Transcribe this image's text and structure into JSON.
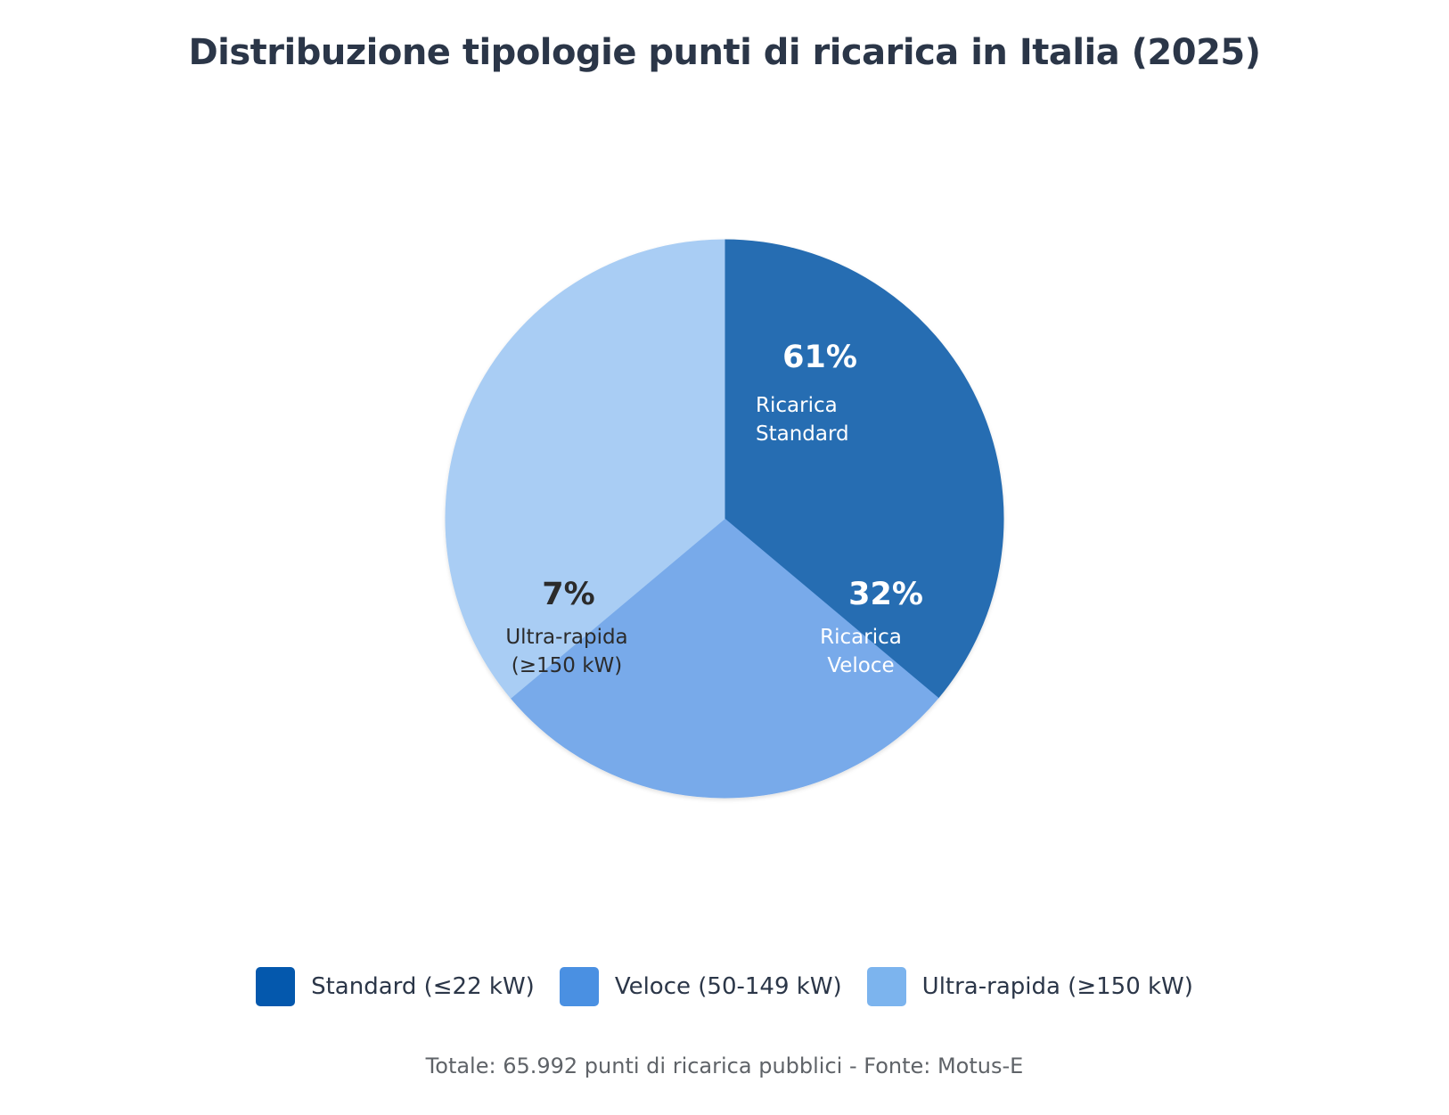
{
  "chart_data": {
    "type": "pie",
    "title": "Distribuzione tipologie punti di ricarica in Italia (2025)",
    "slices": [
      {
        "name": "Standard (≤22 kW)",
        "value_label": "61%",
        "inner_label_lines": [
          "Ricarica",
          "Standard"
        ],
        "slice_color": "#266db2",
        "legend_color": "#0458ad",
        "label_color": "#ffffff"
      },
      {
        "name": "Veloce (50-149 kW)",
        "value_label": "32%",
        "inner_label_lines": [
          "Ricarica",
          "Veloce"
        ],
        "slice_color": "#78aaea",
        "legend_color": "#4a90e2",
        "label_color": "#ffffff"
      },
      {
        "name": "Ultra-rapida (≥150 kW)",
        "value_label": "7%",
        "inner_label_lines": [
          "Ultra-rapida",
          "(≥150 kW)"
        ],
        "slice_color": "#a9cdf4",
        "legend_color": "#7cb4ee",
        "label_color": "#2b2b2b"
      }
    ],
    "legend_position": "bottom",
    "footnote": "Totale: 65.992 punti di ricarica pubblici - Fonte: Motus-E"
  }
}
